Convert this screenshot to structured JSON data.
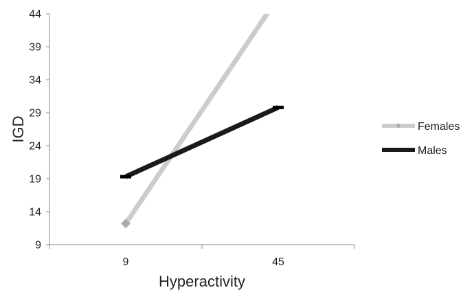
{
  "chart_data": {
    "type": "line",
    "title": "",
    "xlabel": "Hyperactivity",
    "ylabel": "IGD",
    "categories": [
      "9",
      "45"
    ],
    "ylim": [
      9,
      44
    ],
    "yticks": [
      9,
      14,
      19,
      24,
      29,
      34,
      39,
      44
    ],
    "grid": false,
    "legend_position": "right",
    "series": [
      {
        "name": "Females",
        "values": [
          12.2,
          46.5
        ],
        "color": "#cccccc",
        "marker": "diamond"
      },
      {
        "name": "Males",
        "values": [
          19.3,
          29.8
        ],
        "color": "#1a1a1a",
        "marker": "dash"
      }
    ]
  }
}
